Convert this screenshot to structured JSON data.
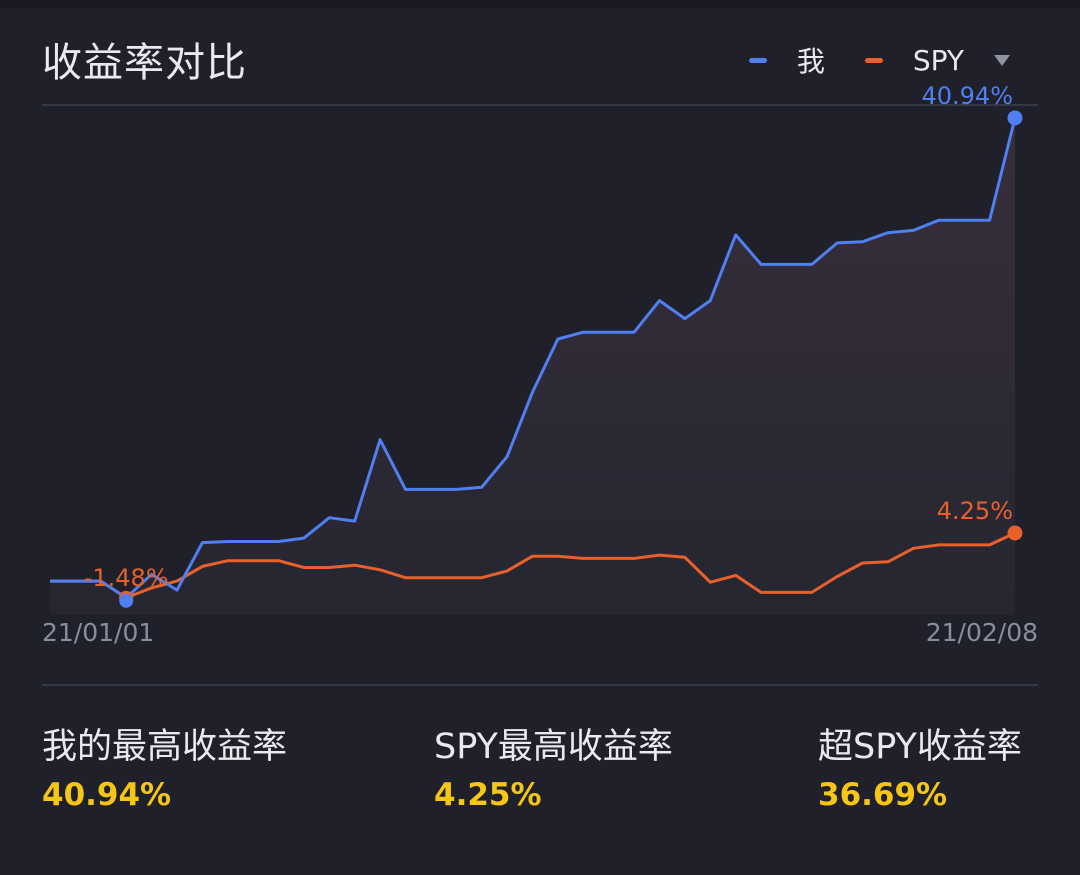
{
  "header": {
    "title": "收益率对比",
    "legend": [
      {
        "label": "我",
        "color": "#4f7ff0"
      },
      {
        "label": "SPY",
        "color": "#e8612c"
      }
    ],
    "legend_dropdown_icon": "caret-down-icon"
  },
  "chart_data": {
    "type": "area",
    "x_start_label": "21/01/01",
    "x_end_label": "21/02/08",
    "ylim": [
      -3,
      42
    ],
    "series": [
      {
        "name": "我",
        "color": "#4f7ff0",
        "end_label": "40.94%",
        "values": [
          0,
          0,
          0,
          -1.48,
          0.6,
          -0.8,
          3.4,
          3.5,
          3.5,
          3.5,
          3.8,
          5.6,
          5.3,
          12.5,
          8.1,
          8.1,
          8.1,
          8.3,
          11.0,
          16.7,
          21.4,
          22.0,
          22.0,
          22.0,
          24.8,
          23.2,
          24.8,
          30.6,
          28.0,
          28.0,
          28.0,
          29.9,
          30.0,
          30.8,
          31.0,
          31.9,
          31.9,
          31.9,
          40.94
        ]
      },
      {
        "name": "SPY",
        "color": "#e8612c",
        "end_label": "4.25%",
        "start_label": "-1.48%",
        "values": [
          0,
          0,
          0,
          -1.48,
          -0.6,
          0,
          1.3,
          1.8,
          1.8,
          1.8,
          1.2,
          1.2,
          1.4,
          1.0,
          0.3,
          0.3,
          0.3,
          0.3,
          0.9,
          2.2,
          2.2,
          2.0,
          2.0,
          2.0,
          2.3,
          2.1,
          -0.1,
          0.5,
          -1.0,
          -1.0,
          -1.0,
          0.4,
          1.6,
          1.7,
          2.9,
          3.2,
          3.2,
          3.2,
          4.25
        ]
      }
    ]
  },
  "stats": {
    "my_max_label": "我的最高收益率",
    "my_max_value": "40.94%",
    "spy_max_label": "SPY最高收益率",
    "spy_max_value": "4.25%",
    "excess_label": "超SPY收益率",
    "excess_value": "36.69%"
  },
  "colors": {
    "background": "#1f2029",
    "accent_value": "#f5c518",
    "mine": "#4f7ff0",
    "spy": "#e8612c"
  }
}
